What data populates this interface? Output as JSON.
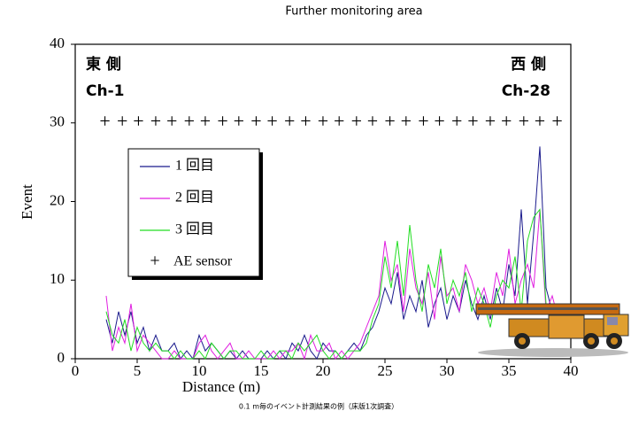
{
  "chart_data": {
    "type": "line",
    "subtitle": "Further monitoring area",
    "xlabel": "Distance (m)",
    "ylabel": "Event",
    "caption": "0.1 m毎のイベント計測結果の例（床版1次調査）",
    "annotations": [
      "東 側",
      "Ch-1",
      "西 側",
      "Ch-28"
    ],
    "xlim": [
      0,
      40
    ],
    "ylim": [
      0,
      40
    ],
    "xticks": [
      0,
      5,
      10,
      15,
      20,
      25,
      30,
      35,
      40
    ],
    "yticks": [
      0,
      10,
      20,
      30,
      40
    ],
    "x": [
      2.5,
      3,
      3.5,
      4,
      4.5,
      5,
      5.5,
      6,
      6.5,
      7,
      7.5,
      8,
      8.5,
      9,
      9.5,
      10,
      10.5,
      11,
      11.5,
      12,
      12.5,
      13,
      13.5,
      14,
      14.5,
      15,
      15.5,
      16,
      16.5,
      17,
      17.5,
      18,
      18.5,
      19,
      19.5,
      20,
      20.5,
      21,
      21.5,
      22,
      22.5,
      23,
      23.5,
      24,
      24.5,
      25,
      25.5,
      26,
      26.5,
      27,
      27.5,
      28,
      28.5,
      29,
      29.5,
      30,
      30.5,
      31,
      31.5,
      32,
      32.5,
      33,
      33.5,
      34,
      34.5,
      35,
      35.5,
      36,
      36.5,
      37,
      37.5,
      38,
      38.5,
      39
    ],
    "series": [
      {
        "name": "1 回目",
        "color": "#1a1a8c",
        "values": [
          5,
          2,
          6,
          3,
          6,
          2,
          4,
          1,
          3,
          1,
          1,
          2,
          0,
          1,
          0,
          3,
          1,
          2,
          1,
          0,
          1,
          0,
          1,
          0,
          0,
          0,
          1,
          0,
          1,
          0,
          2,
          1,
          3,
          1,
          0,
          2,
          1,
          1,
          0,
          1,
          2,
          1,
          3,
          4,
          6,
          9,
          7,
          11,
          5,
          8,
          6,
          10,
          4,
          7,
          9,
          5,
          8,
          6,
          10,
          7,
          5,
          8,
          5,
          9,
          6,
          12,
          8,
          19,
          7,
          16,
          27,
          9,
          6,
          4
        ]
      },
      {
        "name": "2 回目",
        "color": "#e01ee0",
        "values": [
          8,
          1,
          4,
          2,
          7,
          1,
          3,
          2,
          1,
          0,
          0,
          1,
          0,
          0,
          0,
          2,
          3,
          1,
          0,
          1,
          2,
          0,
          0,
          1,
          0,
          0,
          0,
          1,
          0,
          1,
          1,
          2,
          0,
          3,
          1,
          1,
          2,
          0,
          1,
          0,
          1,
          2,
          4,
          6,
          8,
          15,
          10,
          12,
          6,
          14,
          9,
          7,
          11,
          5,
          13,
          8,
          9,
          6,
          12,
          10,
          7,
          9,
          6,
          11,
          8,
          14,
          7,
          10,
          12,
          9,
          19,
          6,
          8,
          5
        ]
      },
      {
        "name": "3 回目",
        "color": "#22dd22",
        "values": [
          6,
          3,
          2,
          5,
          1,
          4,
          2,
          1,
          2,
          1,
          1,
          0,
          1,
          0,
          0,
          1,
          0,
          2,
          1,
          0,
          1,
          1,
          0,
          0,
          0,
          1,
          0,
          0,
          1,
          1,
          0,
          2,
          1,
          2,
          3,
          1,
          0,
          1,
          0,
          1,
          1,
          1,
          2,
          5,
          7,
          13,
          9,
          15,
          8,
          17,
          10,
          6,
          12,
          9,
          14,
          7,
          10,
          8,
          11,
          6,
          9,
          7,
          4,
          8,
          10,
          9,
          13,
          6,
          15,
          18,
          19,
          7,
          5,
          3
        ]
      }
    ],
    "sensors": {
      "name": "AE sensor",
      "marker": "+",
      "color": "#000000",
      "x": [
        2.4,
        3.8,
        5.1,
        6.5,
        7.8,
        9.2,
        10.5,
        11.9,
        13.2,
        14.6,
        15.9,
        17.3,
        18.6,
        20.0,
        21.3,
        22.7,
        24.0,
        25.4,
        26.7,
        28.1,
        29.4,
        30.8,
        32.1,
        33.5,
        34.8,
        36.2,
        37.5,
        38.9
      ],
      "values": [
        30,
        30,
        30,
        30,
        30,
        30,
        30,
        30,
        30,
        30,
        30,
        30,
        30,
        30,
        30,
        30,
        30,
        30,
        30,
        30,
        30,
        30,
        30,
        30,
        30,
        30,
        30,
        30
      ]
    }
  }
}
